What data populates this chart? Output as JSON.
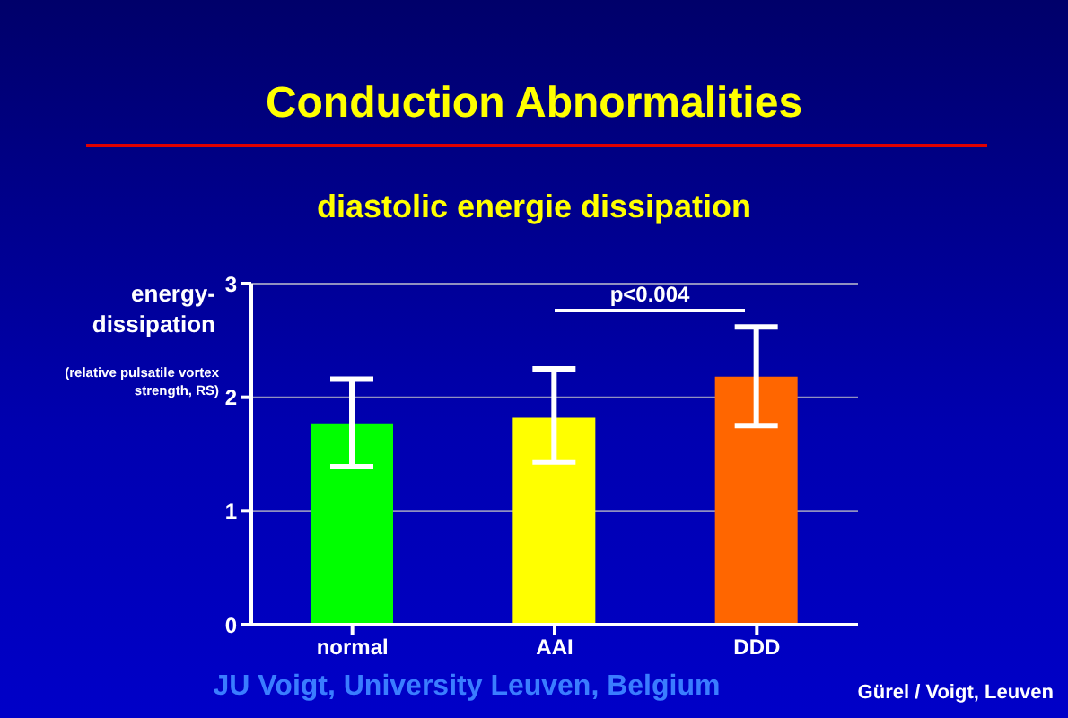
{
  "chart_data": {
    "type": "bar",
    "title": "Conduction Abnormalities",
    "subtitle": "diastolic energie dissipation",
    "ylabel": "energy-dissipation",
    "categories": [
      "normal",
      "AAI",
      "DDD"
    ],
    "values": [
      1.77,
      1.82,
      2.18
    ],
    "colors": [
      "#00ff00",
      "#ffff00",
      "#ff6600"
    ],
    "errors": [
      [
        1.39,
        2.16
      ],
      [
        1.43,
        2.25
      ],
      [
        1.75,
        2.62
      ]
    ],
    "ylim": [
      0,
      3
    ],
    "yticks": [
      0,
      1,
      2,
      3
    ],
    "grid": "y",
    "annotations": [
      "(relative pulsatile vortex strength, RS)",
      "p<0.004",
      "JU Voigt, University Leuven, Belgium",
      "Gürel / Voigt, Leuven"
    ]
  }
}
